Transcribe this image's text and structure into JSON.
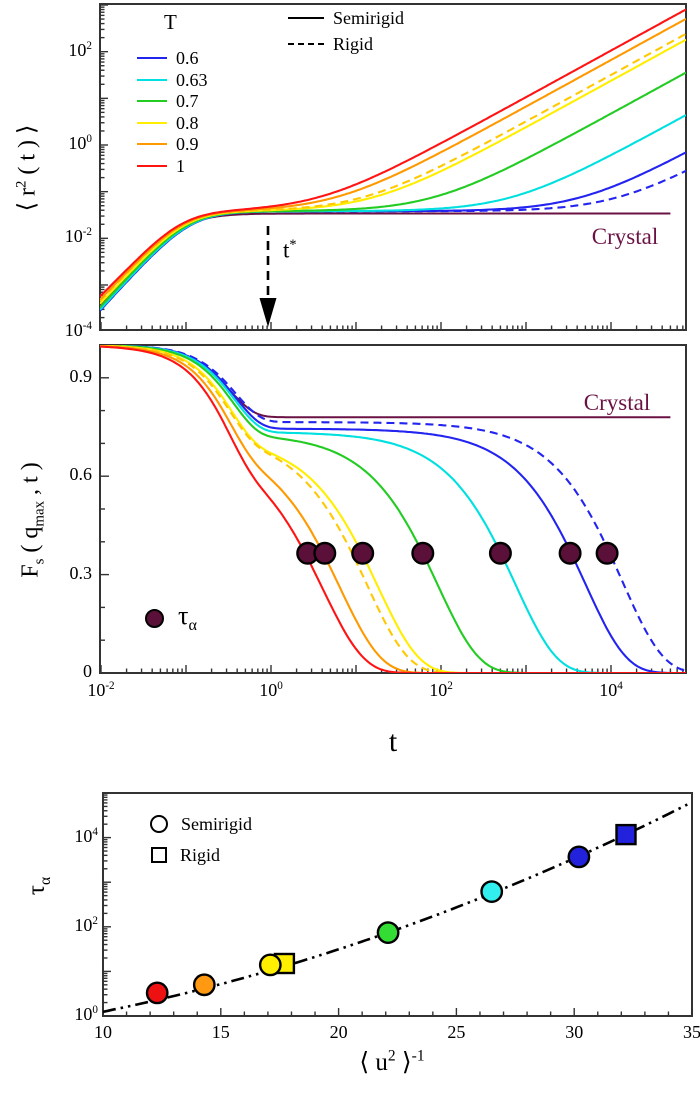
{
  "labels": {
    "crystal": "Crystal",
    "semirigid": "Semirigid",
    "rigid": "Rigid",
    "t": "t",
    "legend_T_title": "T",
    "legend_T": [
      {
        "label": "0.6",
        "color": "#2424f0"
      },
      {
        "label": "0.63",
        "color": "#00e0e0"
      },
      {
        "label": "0.7",
        "color": "#22cc22"
      },
      {
        "label": "0.8",
        "color": "#ffee00"
      },
      {
        "label": "0.9",
        "color": "#ff9900"
      },
      {
        "label": "1",
        "color": "#ff1414"
      }
    ],
    "p1_y": {
      "pre": "⟨ r",
      "sup": "2",
      "post": " ( t ) ⟩"
    },
    "p2_y": {
      "f": "F",
      "s": "s",
      "mid": " ( q",
      "max": "max",
      "post": " , t )"
    },
    "tau_base": "τ",
    "tau_sub": "α",
    "tstar_base": "t",
    "tstar_sup": "*",
    "p3_x": {
      "pre": "⟨ u",
      "sup": "2",
      "mid": " ⟩",
      "sup2": "-1"
    }
  },
  "chart_data": [
    {
      "id": "msd-panel",
      "type": "line",
      "title": "",
      "xlabel": "t",
      "ylabel": "⟨ r2(t) ⟩",
      "x_axis": {
        "scale": "log",
        "range_exp": [
          -2,
          4.88
        ],
        "major_ticks_exp": [
          -2,
          0,
          2,
          4
        ],
        "tick_labels_shown": false
      },
      "y_axis": {
        "scale": "log",
        "range_exp": [
          -4,
          3.02
        ],
        "major_ticks_exp": [
          2,
          0,
          -2,
          -4
        ]
      },
      "plateau": 0.038,
      "t_star": 1,
      "series": [
        {
          "name": "T-1-semirigid",
          "T": 1,
          "tau": 2.7,
          "color": "#ff1414",
          "dashed": false
        },
        {
          "name": "T-0.9-semirigid",
          "T": 0.9,
          "tau": 4.3,
          "color": "#ff9900",
          "dashed": false
        },
        {
          "name": "T-0.9-rigid",
          "T": 0.9,
          "tau": 9,
          "color": "#ffc800",
          "dashed": true
        },
        {
          "name": "T-0.8-semirigid",
          "T": 0.8,
          "tau": 12,
          "color": "#ffee00",
          "dashed": false
        },
        {
          "name": "T-0.7-semirigid",
          "T": 0.7,
          "tau": 61,
          "color": "#22cc22",
          "dashed": false
        },
        {
          "name": "T-0.63-semirigid",
          "T": 0.63,
          "tau": 500,
          "color": "#00e0e0",
          "dashed": false
        },
        {
          "name": "T-0.6-semirigid",
          "T": 0.6,
          "tau": 3300,
          "color": "#2424f0",
          "dashed": false
        },
        {
          "name": "T-0.6-rigid",
          "T": 0.6,
          "tau": 9000,
          "color": "#2424f0",
          "dashed": true
        }
      ],
      "crystal": {
        "label": "Crystal",
        "plateau": 0.034,
        "color": "#6b1245"
      }
    },
    {
      "id": "fs-panel",
      "type": "line",
      "title": "",
      "xlabel": "t",
      "ylabel": "Fs(qmax,t)",
      "x_axis": {
        "scale": "log",
        "range_exp": [
          -2,
          4.88
        ],
        "major_ticks_exp": [
          -2,
          0,
          2,
          4
        ],
        "tick_labels_shown": true
      },
      "y_axis": {
        "scale": "linear",
        "range": [
          0,
          1
        ],
        "major_ticks": [
          0.9,
          0.6,
          0.3,
          0
        ]
      },
      "series_plateaus": [
        0.7,
        0.71,
        0.73,
        0.72,
        0.73,
        0.735,
        0.745,
        0.765
      ],
      "crystal": {
        "label": "Crystal",
        "plateau": 0.78,
        "color": "#6b1245"
      },
      "tau_alpha_markers": {
        "F": 0.365,
        "tau": [
          2.7,
          4.3,
          12,
          61,
          500,
          3300,
          9000
        ],
        "fill": "#5a1038"
      }
    },
    {
      "id": "tau-vs-u2-panel",
      "type": "scatter",
      "title": "",
      "xlabel": "⟨ u2 ⟩ -1",
      "ylabel": "τα",
      "x_axis": {
        "scale": "linear",
        "range": [
          10,
          35
        ],
        "major_ticks": [
          10,
          15,
          20,
          25,
          30,
          35
        ],
        "minor_step": 1
      },
      "y_axis": {
        "scale": "log",
        "range_exp": [
          0,
          5
        ],
        "major_ticks_exp": [
          4,
          2,
          0
        ]
      },
      "points": [
        {
          "T": "1",
          "type": "semirigid",
          "x": 12.3,
          "tau": 3.3,
          "color": "#ee1111"
        },
        {
          "T": "0.9",
          "type": "semirigid",
          "x": 14.3,
          "tau": 5,
          "color": "#ff9911"
        },
        {
          "T": "0.8",
          "type": "rigid",
          "x": 17.7,
          "tau": 15,
          "color": "#ffee00"
        },
        {
          "T": "0.8",
          "type": "semirigid",
          "x": 17.1,
          "tau": 14,
          "color": "#ffee00"
        },
        {
          "T": "0.7",
          "type": "semirigid",
          "x": 22.1,
          "tau": 74,
          "color": "#33dd33"
        },
        {
          "T": "0.63",
          "type": "semirigid",
          "x": 26.5,
          "tau": 615,
          "color": "#33eeee"
        },
        {
          "T": "0.6",
          "type": "semirigid",
          "x": 30.2,
          "tau": 3700,
          "color": "#2222dd"
        },
        {
          "T": "0.6",
          "type": "rigid",
          "x": 32.2,
          "tau": 11700,
          "color": "#2222dd"
        }
      ],
      "fit": {
        "style": "dash-dot-dot",
        "log10_tau_poly": {
          "a": -0.665,
          "b": 0.044,
          "c": 0.0032
        }
      }
    }
  ]
}
